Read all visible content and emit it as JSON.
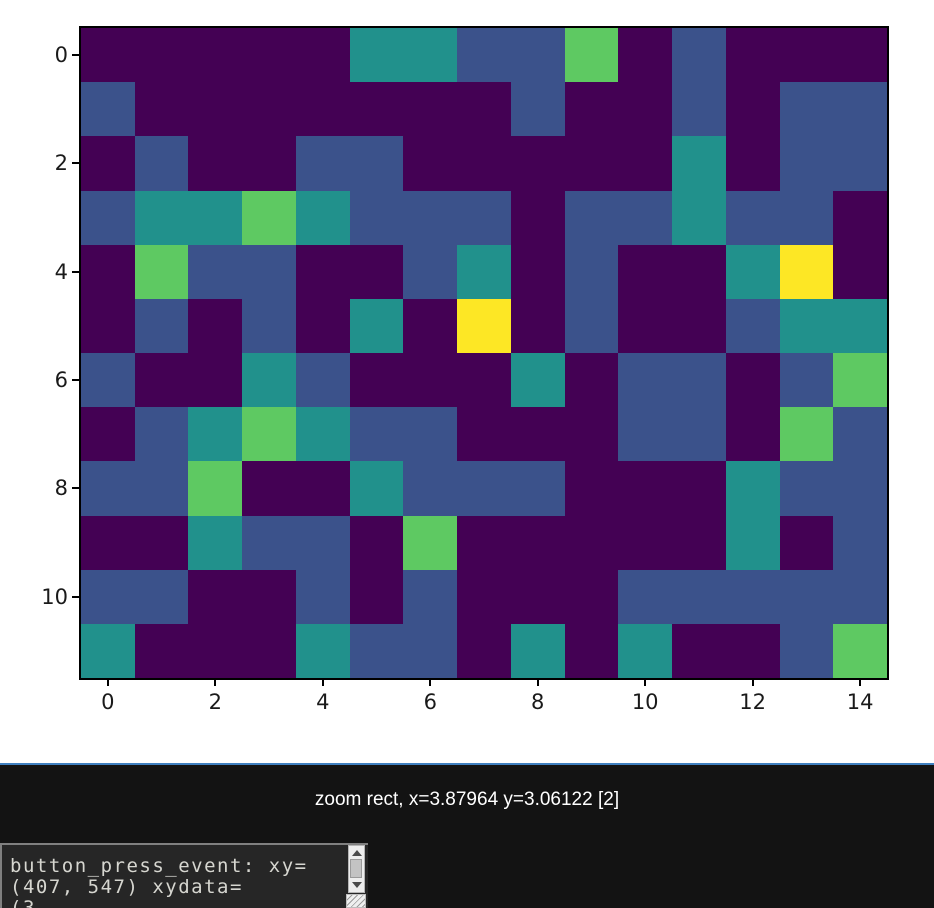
{
  "window": {
    "background": "#ffffff",
    "panel_background": "#131313",
    "separator_color": "#4080c0"
  },
  "figure": {
    "chart_data": {
      "type": "heatmap",
      "title": "",
      "xlabel": "",
      "ylabel": "",
      "colormap": "viridis (5 discrete levels)",
      "level_colors": [
        "#440154",
        "#3b528b",
        "#21918c",
        "#5ec962",
        "#fde725"
      ],
      "x_ticks": [
        0,
        2,
        4,
        6,
        8,
        10,
        12,
        14
      ],
      "y_ticks": [
        0,
        2,
        4,
        6,
        8,
        10
      ],
      "x_range": [
        0,
        14
      ],
      "y_range": [
        0,
        11
      ],
      "grid": "off",
      "values": [
        [
          0,
          0,
          0,
          0,
          0,
          2,
          2,
          1,
          1,
          3,
          0,
          1,
          0,
          0,
          0
        ],
        [
          1,
          0,
          0,
          0,
          0,
          0,
          0,
          0,
          1,
          0,
          0,
          1,
          0,
          1,
          1
        ],
        [
          0,
          1,
          0,
          0,
          1,
          1,
          0,
          0,
          0,
          0,
          0,
          2,
          0,
          1,
          1
        ],
        [
          1,
          2,
          2,
          3,
          2,
          1,
          1,
          1,
          0,
          1,
          1,
          2,
          1,
          1,
          0
        ],
        [
          0,
          3,
          1,
          1,
          0,
          0,
          1,
          2,
          0,
          1,
          0,
          0,
          2,
          4,
          0
        ],
        [
          0,
          1,
          0,
          1,
          0,
          2,
          0,
          4,
          0,
          1,
          0,
          0,
          1,
          2,
          2
        ],
        [
          1,
          0,
          0,
          2,
          1,
          0,
          0,
          0,
          2,
          0,
          1,
          1,
          0,
          1,
          3
        ],
        [
          0,
          1,
          2,
          3,
          2,
          1,
          1,
          0,
          0,
          0,
          1,
          1,
          0,
          3,
          1
        ],
        [
          1,
          1,
          3,
          0,
          0,
          2,
          1,
          1,
          1,
          0,
          0,
          0,
          2,
          1,
          1
        ],
        [
          0,
          0,
          2,
          1,
          1,
          0,
          3,
          0,
          0,
          0,
          0,
          0,
          2,
          0,
          1
        ],
        [
          1,
          1,
          0,
          0,
          1,
          0,
          1,
          0,
          0,
          0,
          1,
          1,
          1,
          1,
          1
        ],
        [
          2,
          0,
          0,
          0,
          2,
          1,
          1,
          0,
          2,
          0,
          2,
          0,
          0,
          1,
          3
        ]
      ]
    },
    "x_tick_labels": [
      "0",
      "2",
      "4",
      "6",
      "8",
      "10",
      "12",
      "14"
    ],
    "y_tick_labels": [
      "0",
      "2",
      "4",
      "6",
      "8",
      "10"
    ]
  },
  "statusbar": {
    "message": "zoom rect, x=3.87964 y=3.06122 [2]",
    "text_color": "#ffffff"
  },
  "console": {
    "lines": [
      "button_press_event: xy=",
      "(407, 547) xydata=",
      "(3"
    ],
    "background": "#262626",
    "text_color": "#d6d6d0",
    "scrollbar": {
      "track": "#ededed",
      "thumb": "#c3c3c3",
      "arrow": "#4a4a4a"
    }
  }
}
